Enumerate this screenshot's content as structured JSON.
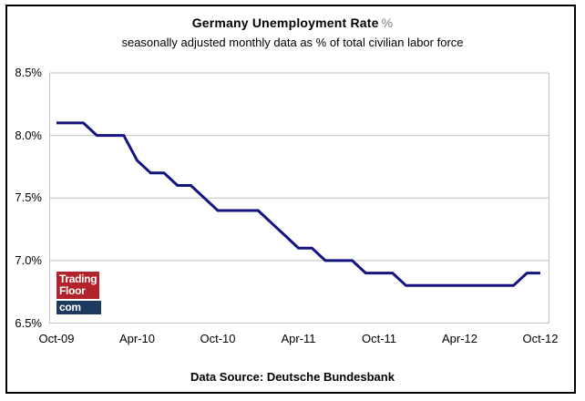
{
  "header": {
    "title": "Germany Unemployment Rate",
    "title_suffix": "%",
    "subtitle": "seasonally adjusted monthly data as % of total civilian labor force"
  },
  "footer": {
    "source": "Data Source: Deutsche Bundesbank"
  },
  "watermark": {
    "line1": "Trading",
    "line2": "Floor",
    "line3": "com",
    "red_color": "#B0232A",
    "navy_color": "#1C3A5E",
    "text_color": "#FFFFFF"
  },
  "chart_data": {
    "type": "line",
    "title": "Germany Unemployment Rate %",
    "subtitle": "seasonally adjusted monthly data as % of total civilian labor force",
    "series_name": "Germany unemployment rate, % of total civilian labor force",
    "x": [
      "Oct-09",
      "Nov-09",
      "Dec-09",
      "Jan-10",
      "Feb-10",
      "Mar-10",
      "Apr-10",
      "May-10",
      "Jun-10",
      "Jul-10",
      "Aug-10",
      "Sep-10",
      "Oct-10",
      "Nov-10",
      "Dec-10",
      "Jan-11",
      "Feb-11",
      "Mar-11",
      "Apr-11",
      "May-11",
      "Jun-11",
      "Jul-11",
      "Aug-11",
      "Sep-11",
      "Oct-11",
      "Nov-11",
      "Dec-11",
      "Jan-12",
      "Feb-12",
      "Mar-12",
      "Apr-12",
      "May-12",
      "Jun-12",
      "Jul-12",
      "Aug-12",
      "Sep-12",
      "Oct-12"
    ],
    "values": [
      8.1,
      8.1,
      8.1,
      8.0,
      8.0,
      8.0,
      7.8,
      7.7,
      7.7,
      7.6,
      7.6,
      7.5,
      7.4,
      7.4,
      7.4,
      7.4,
      7.3,
      7.2,
      7.1,
      7.1,
      7.0,
      7.0,
      7.0,
      6.9,
      6.9,
      6.9,
      6.8,
      6.8,
      6.8,
      6.8,
      6.8,
      6.8,
      6.8,
      6.8,
      6.8,
      6.9,
      6.9
    ],
    "xtick_labels": [
      "Oct-09",
      "Apr-10",
      "Oct-10",
      "Apr-11",
      "Oct-11",
      "Apr-12",
      "Oct-12"
    ],
    "xtick_every_n_months": 6,
    "ytick_labels": [
      "8.5%",
      "8.0%",
      "7.5%",
      "7.0%",
      "6.5%"
    ],
    "yticks": [
      8.5,
      8.0,
      7.5,
      7.0,
      6.5
    ],
    "ylim": [
      6.5,
      8.5
    ],
    "grid": "horizontal",
    "legend": "none",
    "line_color": "#141480",
    "grid_color": "#C0C0C0",
    "data_source": "Data Source: Deutsche Bundesbank"
  }
}
